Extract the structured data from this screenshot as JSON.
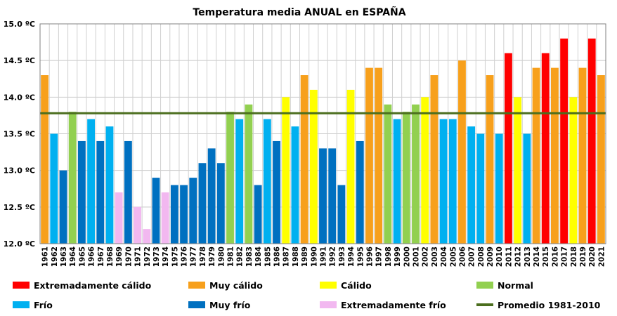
{
  "chart_data": {
    "type": "bar",
    "title": "Temperatura media ANUAL en ESPAÑA",
    "y_tick_labels": [
      "12.0 ºC",
      "12.5 ºC",
      "13.0 ºC",
      "13.5 ºC",
      "14.0 ºC",
      "14.5 ºC",
      "15.0 ºC"
    ],
    "ylim": [
      12.0,
      15.0
    ],
    "grid": true,
    "categories": [
      "1961",
      "1962",
      "1963",
      "1964",
      "1965",
      "1966",
      "1967",
      "1968",
      "1969",
      "1970",
      "1971",
      "1972",
      "1973",
      "1974",
      "1975",
      "1976",
      "1977",
      "1978",
      "1979",
      "1980",
      "1981",
      "1982",
      "1983",
      "1984",
      "1985",
      "1986",
      "1987",
      "1988",
      "1989",
      "1990",
      "1991",
      "1992",
      "1993",
      "1994",
      "1995",
      "1996",
      "1997",
      "1998",
      "1999",
      "2000",
      "2001",
      "2002",
      "2003",
      "2004",
      "2005",
      "2006",
      "2007",
      "2008",
      "2009",
      "2010",
      "2011",
      "2012",
      "2013",
      "2014",
      "2015",
      "2016",
      "2017",
      "2018",
      "2019",
      "2020",
      "2021"
    ],
    "values": [
      14.3,
      13.5,
      13.0,
      13.8,
      13.4,
      13.7,
      13.4,
      13.6,
      12.7,
      13.4,
      12.5,
      12.2,
      12.9,
      12.7,
      12.8,
      12.8,
      12.9,
      13.1,
      13.3,
      13.1,
      13.8,
      13.7,
      13.9,
      12.8,
      13.7,
      13.4,
      14.0,
      13.6,
      14.3,
      14.1,
      13.3,
      13.3,
      12.8,
      14.1,
      13.4,
      14.4,
      14.4,
      13.9,
      13.7,
      13.8,
      13.9,
      14.0,
      14.3,
      13.7,
      13.7,
      14.5,
      13.6,
      13.5,
      14.3,
      13.5,
      14.6,
      14.0,
      13.5,
      14.4,
      14.6,
      14.4,
      14.8,
      14.0,
      14.4,
      14.8,
      14.3
    ],
    "bar_classes": [
      "muy_calido",
      "frio",
      "muy_frio",
      "normal",
      "muy_frio",
      "frio",
      "muy_frio",
      "frio",
      "extremadamente_frio",
      "muy_frio",
      "extremadamente_frio",
      "extremadamente_frio",
      "muy_frio",
      "extremadamente_frio",
      "muy_frio",
      "muy_frio",
      "muy_frio",
      "muy_frio",
      "muy_frio",
      "muy_frio",
      "normal",
      "frio",
      "normal",
      "muy_frio",
      "frio",
      "muy_frio",
      "calido",
      "frio",
      "muy_calido",
      "calido",
      "muy_frio",
      "muy_frio",
      "muy_frio",
      "calido",
      "muy_frio",
      "muy_calido",
      "muy_calido",
      "normal",
      "frio",
      "normal",
      "normal",
      "calido",
      "muy_calido",
      "frio",
      "frio",
      "muy_calido",
      "frio",
      "frio",
      "muy_calido",
      "frio",
      "extremadamente_calido",
      "calido",
      "frio",
      "muy_calido",
      "extremadamente_calido",
      "muy_calido",
      "extremadamente_calido",
      "calido",
      "muy_calido",
      "extremadamente_calido",
      "muy_calido"
    ],
    "average_line": {
      "name": "Promedio 1981-2010",
      "value": 13.78,
      "color": "#4b6e1e"
    },
    "legend": [
      {
        "key": "extremadamente_calido",
        "label": "Extremadamente cálido",
        "color": "#ff0000"
      },
      {
        "key": "muy_calido",
        "label": "Muy cálido",
        "color": "#f7a01c"
      },
      {
        "key": "calido",
        "label": "Cálido",
        "color": "#ffff00"
      },
      {
        "key": "normal",
        "label": "Normal",
        "color": "#92d050"
      },
      {
        "key": "frio",
        "label": "Frío",
        "color": "#00b0f0"
      },
      {
        "key": "muy_frio",
        "label": "Muy frío",
        "color": "#0070c0"
      },
      {
        "key": "extremadamente_frio",
        "label": "Extremadamente frío",
        "color": "#f2b8f0"
      },
      {
        "key": "promedio",
        "label": "Promedio 1981-2010",
        "color": "#4b6e1e"
      }
    ],
    "legend_placement": "bottom"
  }
}
